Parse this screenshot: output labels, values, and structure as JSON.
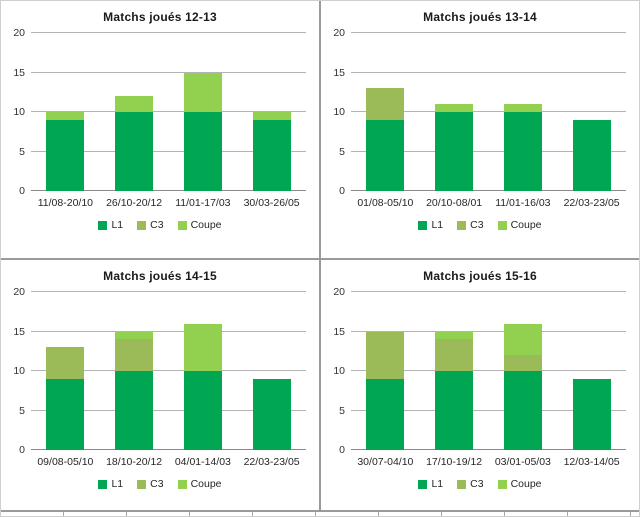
{
  "colors": {
    "l1": "#00A651",
    "c3": "#9BBB59",
    "coupe": "#92D050",
    "gridline": "#B3B3B3",
    "axis_line": "#8A8A8A",
    "panel_divider": "#9A9A9A",
    "text": "#262626"
  },
  "chart_data": [
    {
      "type": "bar",
      "stacked": true,
      "title": "Matchs joués 12-13",
      "categories": [
        "11/08-20/10",
        "26/10-20/12",
        "11/01-17/03",
        "30/03-26/05"
      ],
      "series": [
        {
          "name": "L1",
          "color": "#00A651",
          "values": [
            9,
            10,
            10,
            9
          ]
        },
        {
          "name": "C3",
          "color": "#9BBB59",
          "values": [
            0,
            0,
            0,
            0
          ]
        },
        {
          "name": "Coupe",
          "color": "#92D050",
          "values": [
            1,
            2,
            5,
            1
          ]
        }
      ],
      "ylim": [
        0,
        20
      ],
      "yticks": [
        0,
        5,
        10,
        15,
        20
      ],
      "legend": [
        "L1",
        "C3",
        "Coupe"
      ],
      "legend_position": "bottom",
      "grid": true
    },
    {
      "type": "bar",
      "stacked": true,
      "title": "Matchs joués 13-14",
      "categories": [
        "01/08-05/10",
        "20/10-08/01",
        "11/01-16/03",
        "22/03-23/05"
      ],
      "series": [
        {
          "name": "L1",
          "color": "#00A651",
          "values": [
            9,
            10,
            10,
            9
          ]
        },
        {
          "name": "C3",
          "color": "#9BBB59",
          "values": [
            4,
            0,
            0,
            0
          ]
        },
        {
          "name": "Coupe",
          "color": "#92D050",
          "values": [
            0,
            1,
            1,
            0
          ]
        }
      ],
      "ylim": [
        0,
        20
      ],
      "yticks": [
        0,
        5,
        10,
        15,
        20
      ],
      "legend": [
        "L1",
        "C3",
        "Coupe"
      ],
      "legend_position": "bottom",
      "grid": true
    },
    {
      "type": "bar",
      "stacked": true,
      "title": "Matchs joués 14-15",
      "categories": [
        "09/08-05/10",
        "18/10-20/12",
        "04/01-14/03",
        "22/03-23/05"
      ],
      "series": [
        {
          "name": "L1",
          "color": "#00A651",
          "values": [
            9,
            10,
            10,
            9
          ]
        },
        {
          "name": "C3",
          "color": "#9BBB59",
          "values": [
            4,
            4,
            0,
            0
          ]
        },
        {
          "name": "Coupe",
          "color": "#92D050",
          "values": [
            0,
            1,
            6,
            0
          ]
        }
      ],
      "ylim": [
        0,
        20
      ],
      "yticks": [
        0,
        5,
        10,
        15,
        20
      ],
      "legend": [
        "L1",
        "C3",
        "Coupe"
      ],
      "legend_position": "bottom",
      "grid": true
    },
    {
      "type": "bar",
      "stacked": true,
      "title": "Matchs joués 15-16",
      "categories": [
        "30/07-04/10",
        "17/10-19/12",
        "03/01-05/03",
        "12/03-14/05"
      ],
      "series": [
        {
          "name": "L1",
          "color": "#00A651",
          "values": [
            9,
            10,
            10,
            9
          ]
        },
        {
          "name": "C3",
          "color": "#9BBB59",
          "values": [
            6,
            4,
            2,
            0
          ]
        },
        {
          "name": "Coupe",
          "color": "#92D050",
          "values": [
            0,
            1,
            4,
            0
          ]
        }
      ],
      "ylim": [
        0,
        20
      ],
      "yticks": [
        0,
        5,
        10,
        15,
        20
      ],
      "legend": [
        "L1",
        "C3",
        "Coupe"
      ],
      "legend_position": "bottom",
      "grid": true
    }
  ]
}
